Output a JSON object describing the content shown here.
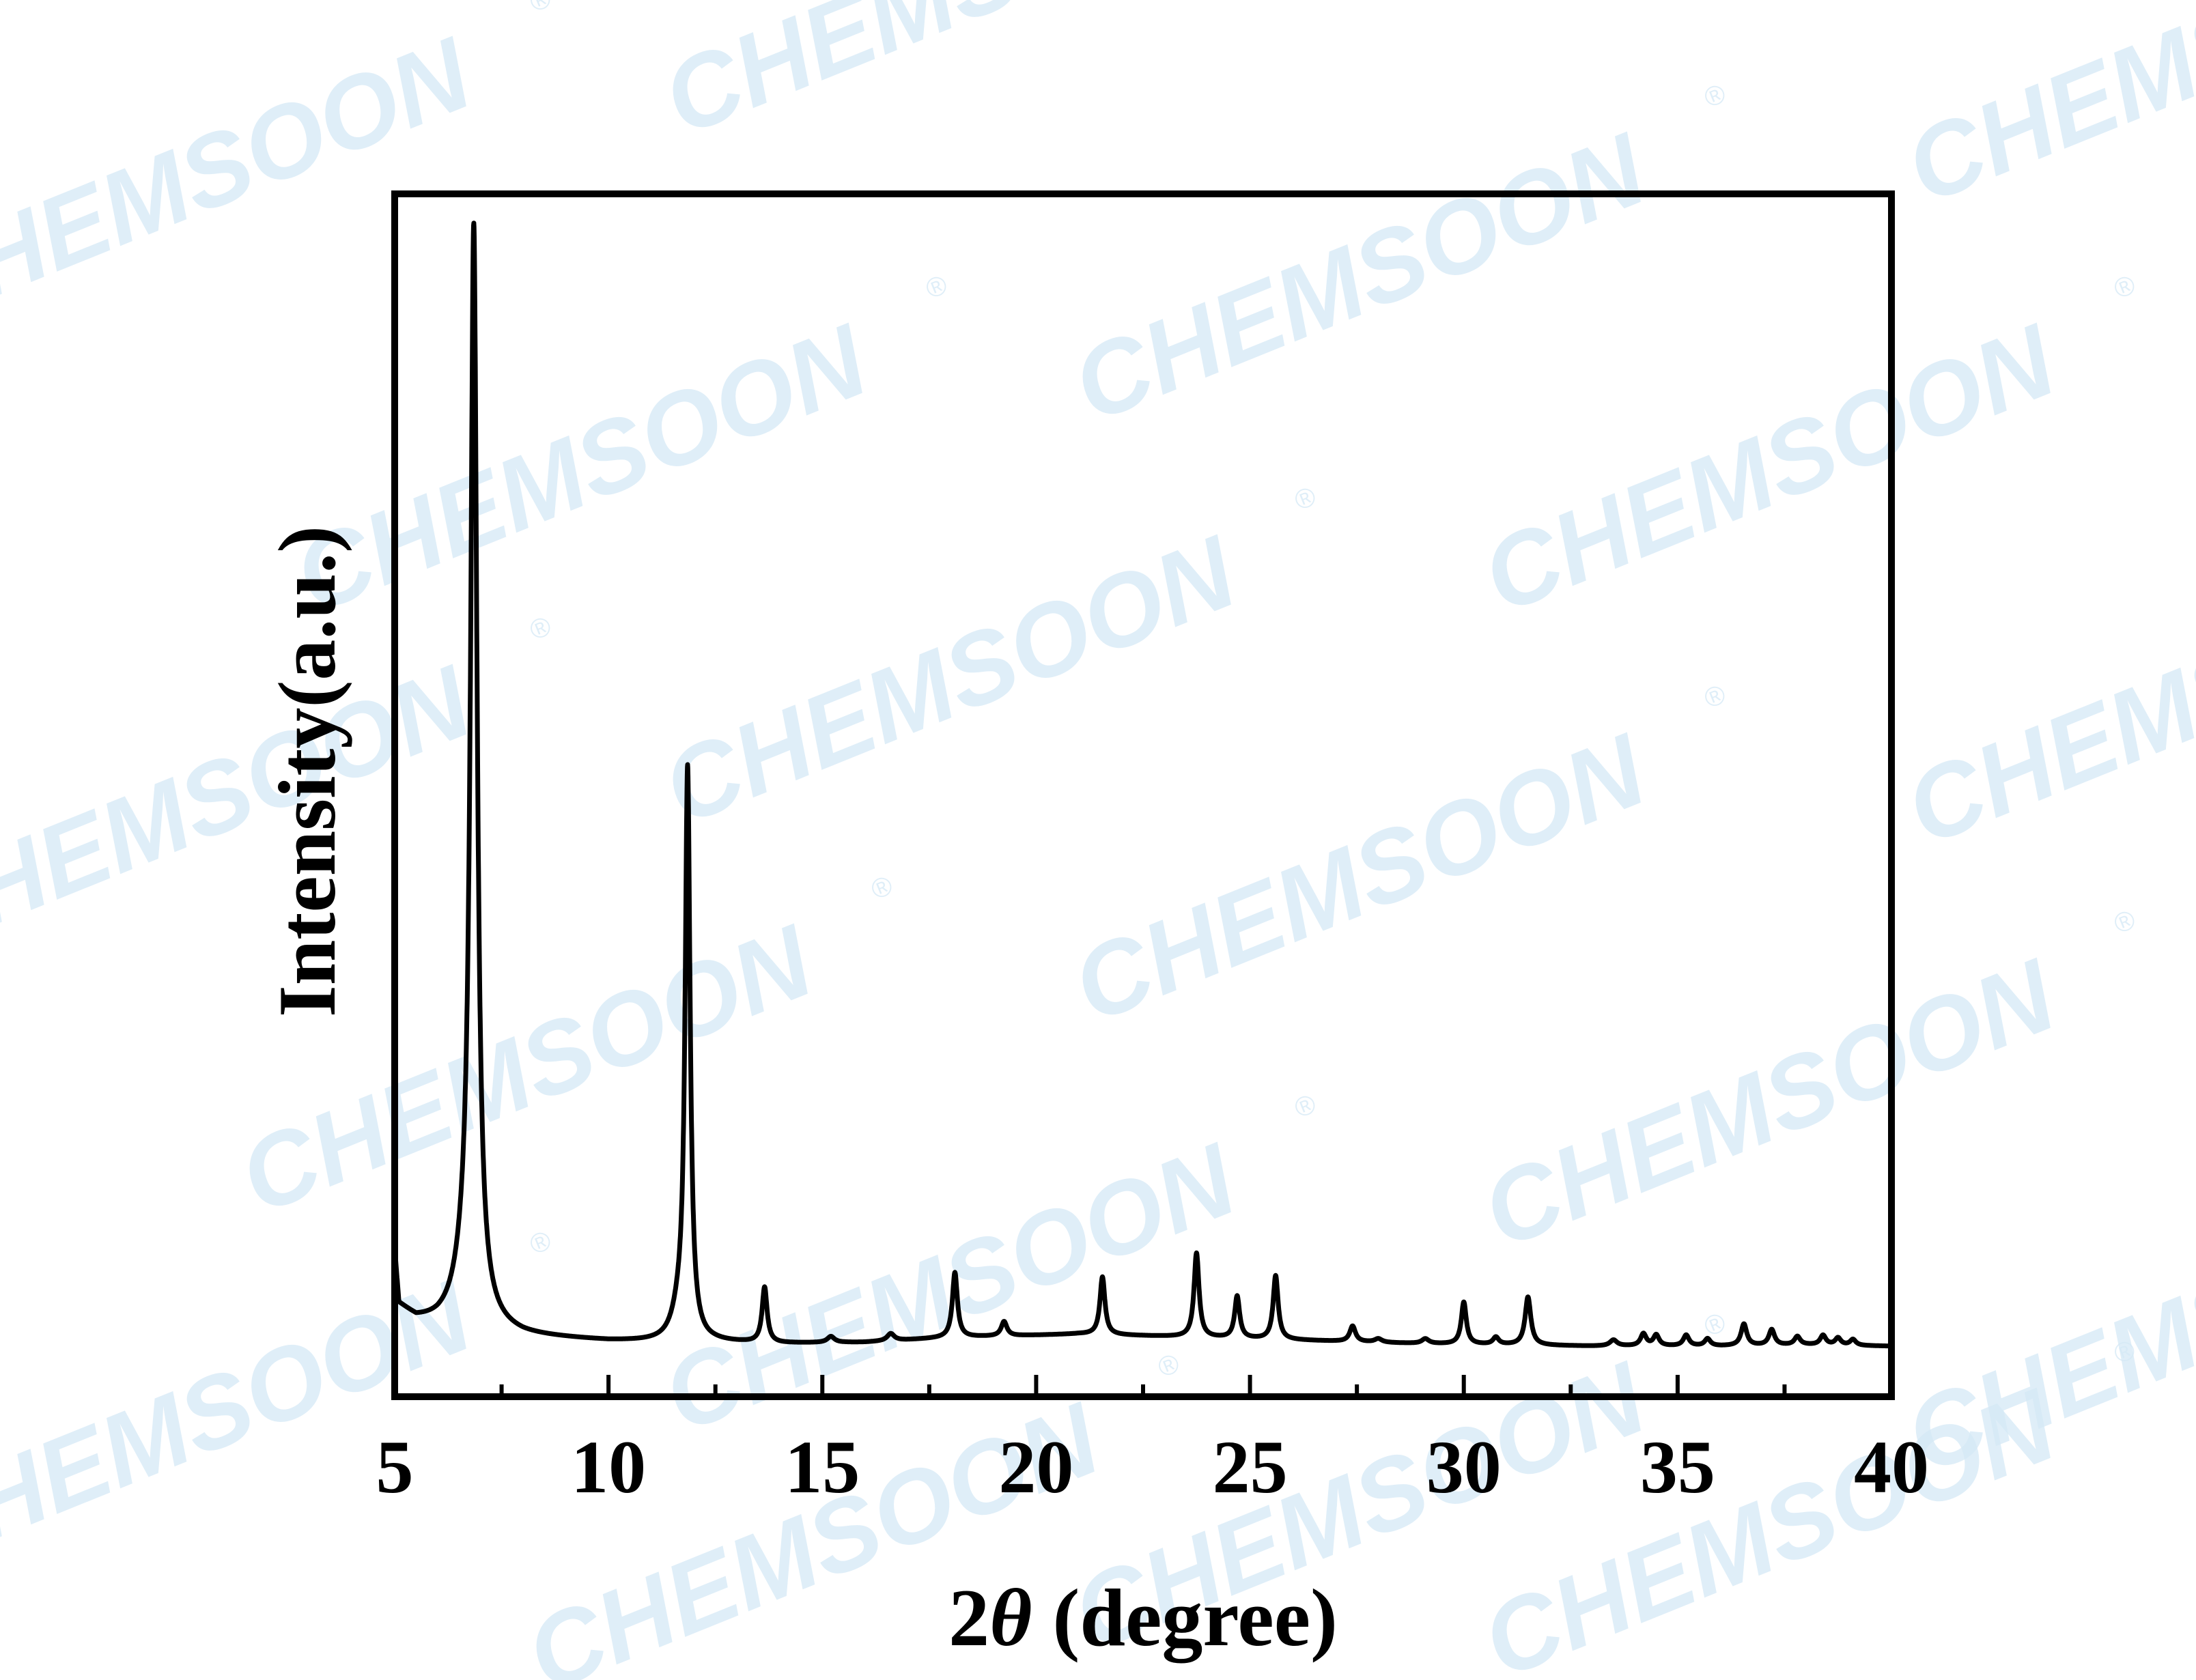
{
  "watermark": "CHEMSOON",
  "watermark_mark": "®",
  "colors": {
    "line": "#000000",
    "watermark": "#d5e9f6",
    "background": "#ffffff"
  },
  "chart_data": {
    "type": "line",
    "xlabel_prefix": "2",
    "xlabel_symbol": "θ",
    "xlabel_suffix": " (degree)",
    "ylabel": "Intensity(a.u.)",
    "xlim": [
      5,
      40
    ],
    "ylim": [
      0,
      100
    ],
    "xticks": [
      "5",
      "10",
      "15",
      "20",
      "25",
      "30",
      "35",
      "40"
    ],
    "yticks_shown": false,
    "grid": false,
    "legend": "none",
    "background_baseline": [
      [
        5.0,
        12
      ],
      [
        5.1,
        7.5
      ],
      [
        5.5,
        6.3
      ],
      [
        6.0,
        5.9
      ],
      [
        6.3,
        5.8
      ],
      [
        7.0,
        5.5
      ],
      [
        8.0,
        5.0
      ],
      [
        10.0,
        4.6
      ],
      [
        11.3,
        4.5
      ],
      [
        12.5,
        4.5
      ],
      [
        14.0,
        4.4
      ],
      [
        16.0,
        4.5
      ],
      [
        18.0,
        4.9
      ],
      [
        20.0,
        5.1
      ],
      [
        21.0,
        5.2
      ],
      [
        23.0,
        5.0
      ],
      [
        25.0,
        4.8
      ],
      [
        27.0,
        4.6
      ],
      [
        29.0,
        4.4
      ],
      [
        31.0,
        4.3
      ],
      [
        33.0,
        4.2
      ],
      [
        34.0,
        4.2
      ],
      [
        36.0,
        4.2
      ],
      [
        38.0,
        4.3
      ],
      [
        40.0,
        4.2
      ]
    ],
    "peaks": [
      {
        "x": 6.85,
        "height": 88.0,
        "width": 0.09
      },
      {
        "x": 6.7,
        "height": 5.0,
        "width": 0.3
      },
      {
        "x": 11.85,
        "height": 47.0,
        "width": 0.07
      },
      {
        "x": 11.65,
        "height": 2.0,
        "width": 0.2
      },
      {
        "x": 13.65,
        "height": 4.6,
        "width": 0.07
      },
      {
        "x": 15.2,
        "height": 0.5,
        "width": 0.1
      },
      {
        "x": 16.6,
        "height": 0.6,
        "width": 0.1
      },
      {
        "x": 18.1,
        "height": 5.4,
        "width": 0.07
      },
      {
        "x": 19.25,
        "height": 1.2,
        "width": 0.08
      },
      {
        "x": 21.55,
        "height": 4.8,
        "width": 0.07
      },
      {
        "x": 23.75,
        "height": 7.0,
        "width": 0.07
      },
      {
        "x": 24.7,
        "height": 3.5,
        "width": 0.07
      },
      {
        "x": 25.6,
        "height": 5.3,
        "width": 0.07
      },
      {
        "x": 27.4,
        "height": 1.3,
        "width": 0.08
      },
      {
        "x": 28.0,
        "height": 0.3,
        "width": 0.1
      },
      {
        "x": 29.1,
        "height": 0.4,
        "width": 0.1
      },
      {
        "x": 30.0,
        "height": 3.5,
        "width": 0.07
      },
      {
        "x": 30.75,
        "height": 0.6,
        "width": 0.08
      },
      {
        "x": 31.5,
        "height": 4.0,
        "width": 0.08
      },
      {
        "x": 33.5,
        "height": 0.5,
        "width": 0.1
      },
      {
        "x": 34.2,
        "height": 1.0,
        "width": 0.08
      },
      {
        "x": 34.5,
        "height": 0.9,
        "width": 0.08
      },
      {
        "x": 35.2,
        "height": 0.9,
        "width": 0.08
      },
      {
        "x": 35.7,
        "height": 0.6,
        "width": 0.08
      },
      {
        "x": 36.55,
        "height": 1.8,
        "width": 0.08
      },
      {
        "x": 37.2,
        "height": 1.3,
        "width": 0.08
      },
      {
        "x": 37.8,
        "height": 0.7,
        "width": 0.08
      },
      {
        "x": 38.4,
        "height": 0.8,
        "width": 0.08
      },
      {
        "x": 38.75,
        "height": 0.6,
        "width": 0.08
      },
      {
        "x": 39.1,
        "height": 0.5,
        "width": 0.08
      }
    ]
  }
}
